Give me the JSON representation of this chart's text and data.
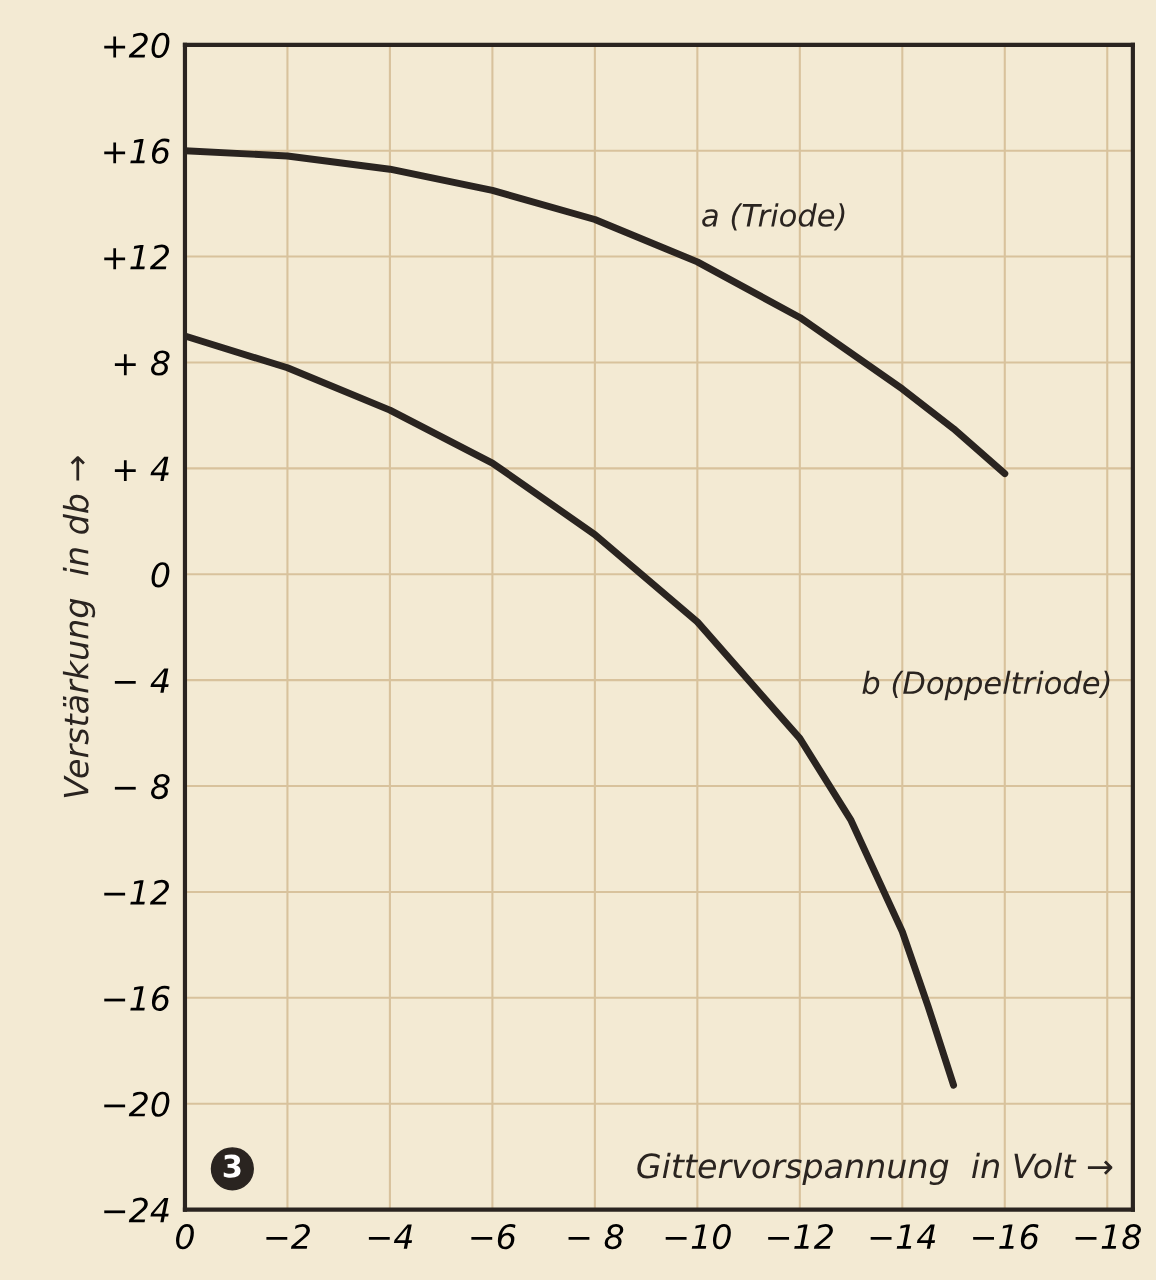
{
  "chart_data": {
    "type": "line",
    "xlabel": "Gittervorspannung  in Volt →",
    "ylabel": "Verstärkung  in db →",
    "xlim": [
      0,
      -18.5
    ],
    "ylim": [
      -24,
      20
    ],
    "xticks": [
      0,
      {
        "value": -2,
        "label": "−2"
      },
      {
        "value": -4,
        "label": "−4"
      },
      {
        "value": -6,
        "label": "−6"
      },
      {
        "value": -8,
        "label": "− 8"
      },
      {
        "value": -10,
        "label": "−10"
      },
      {
        "value": -12,
        "label": "−12"
      },
      {
        "value": -14,
        "label": "−14"
      },
      {
        "value": -16,
        "label": "−16"
      },
      {
        "value": -18,
        "label": "−18"
      }
    ],
    "yticks": [
      {
        "value": 20,
        "label": "+20"
      },
      {
        "value": 16,
        "label": "+16"
      },
      {
        "value": 12,
        "label": "+12"
      },
      {
        "value": 8,
        "label": "+ 8"
      },
      {
        "value": 4,
        "label": "+ 4"
      },
      0,
      {
        "value": -4,
        "label": "− 4"
      },
      {
        "value": -8,
        "label": "− 8"
      },
      {
        "value": -12,
        "label": "−12"
      },
      {
        "value": -16,
        "label": "−16"
      },
      {
        "value": -20,
        "label": "−20"
      },
      {
        "value": -24,
        "label": "−24"
      }
    ],
    "grid": true,
    "legend": false,
    "marker": "none",
    "line_style": "solid",
    "annotations": [
      "3"
    ],
    "series": [
      {
        "name": "a (Triode)",
        "color": "#2a2420",
        "x": [
          0,
          -2,
          -4,
          -6,
          -8,
          -10,
          -12,
          -14,
          -15,
          -16
        ],
        "values": [
          16,
          15.8,
          15.3,
          14.5,
          13.4,
          11.8,
          9.7,
          7.0,
          5.5,
          3.8
        ]
      },
      {
        "name": "b (Doppeltriode)",
        "color": "#2a2420",
        "x": [
          0,
          -2,
          -4,
          -6,
          -8,
          -10,
          -12,
          -13,
          -14,
          -14.5,
          -15
        ],
        "values": [
          9,
          7.8,
          6.2,
          4.2,
          1.5,
          -1.8,
          -6.2,
          -9.3,
          -13.5,
          -16.3,
          -19.3
        ]
      }
    ]
  }
}
